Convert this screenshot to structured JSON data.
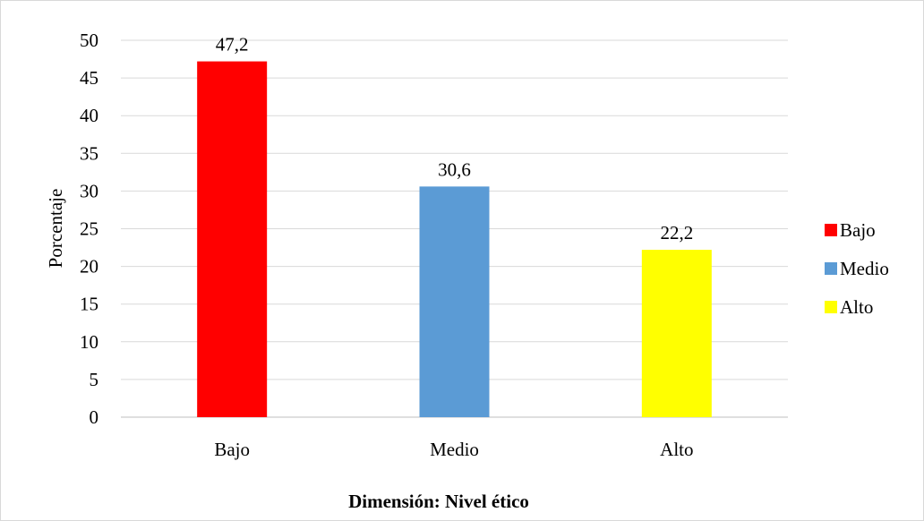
{
  "chart_data": {
    "type": "bar",
    "categories": [
      "Bajo",
      "Medio",
      "Alto"
    ],
    "values": [
      47.2,
      30.6,
      22.2
    ],
    "value_labels": [
      "47,2",
      "30,6",
      "22,2"
    ],
    "colors": [
      "#ff0000",
      "#5b9bd5",
      "#ffff00"
    ],
    "xlabel": "Dimensión: Nivel ético",
    "ylabel": "Porcentaje",
    "ylim": [
      0,
      50
    ],
    "yticks": [
      0,
      5,
      10,
      15,
      20,
      25,
      30,
      35,
      40,
      45,
      50
    ],
    "grid": true,
    "legend": {
      "position": "right",
      "entries": [
        "Bajo",
        "Medio",
        "Alto"
      ]
    }
  }
}
